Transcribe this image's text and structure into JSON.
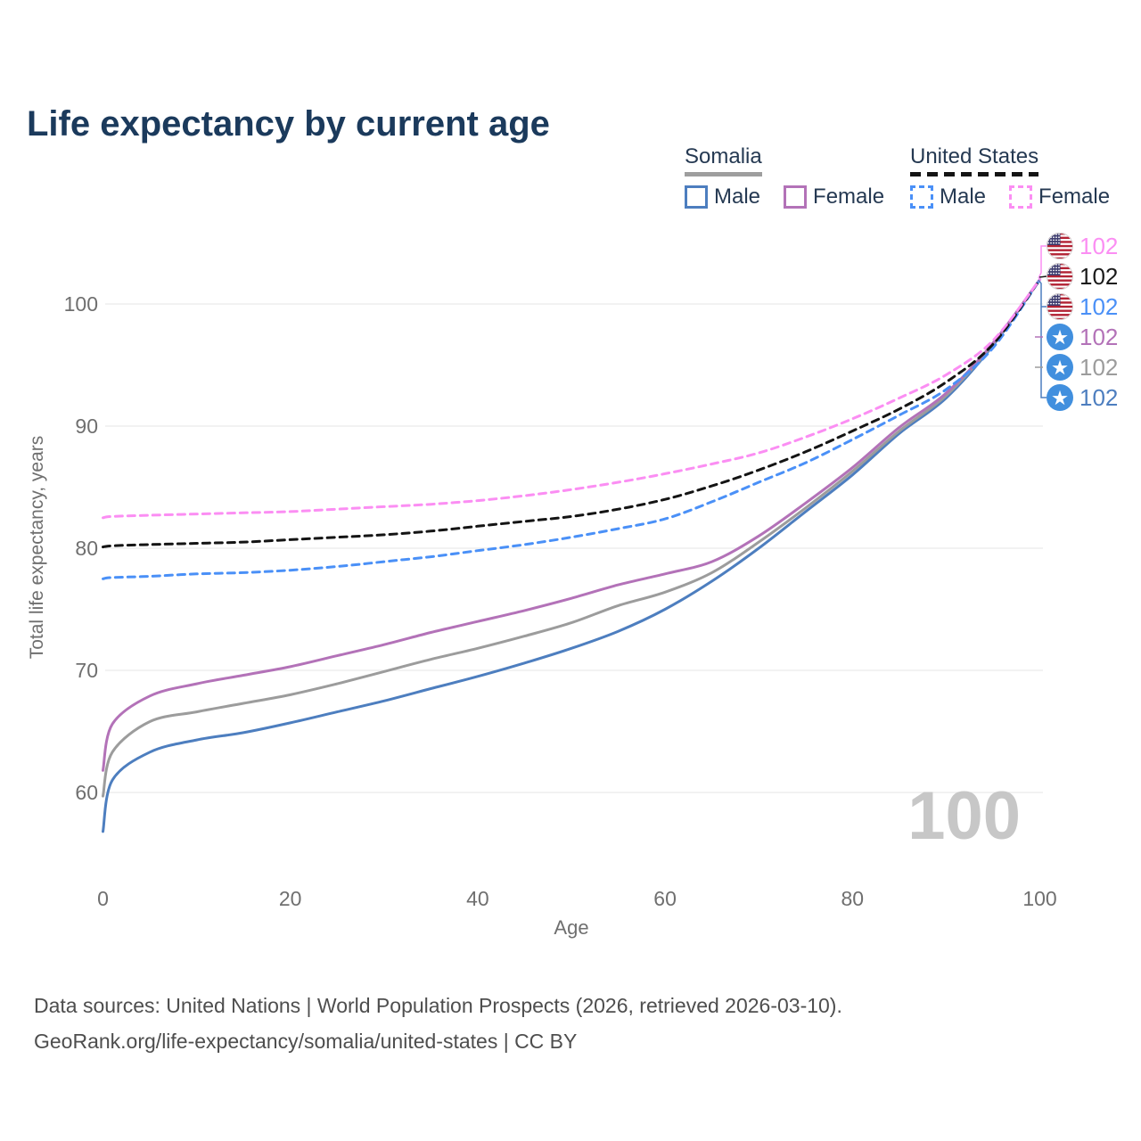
{
  "title": "Life expectancy by current age",
  "watermark_age": "100",
  "colors": {
    "title_text": "#1b3a5c",
    "legend_text": "#253952",
    "axis_text": "#6f6f6f",
    "grid": "#e9e9e9",
    "watermark": "#c7c7c7",
    "footer_text": "#4e4e4e",
    "background": "#ffffff",
    "somalia_male": "#4d7ebf",
    "somalia_female": "#b372b8",
    "somalia_both": "#9c9c9c",
    "us_male": "#4a90f7",
    "us_female": "#fb8ef3",
    "us_both": "#141414",
    "flag_somalia_blue": "#418fde",
    "flag_us_red": "#b22234",
    "flag_us_canton": "#3c3b6e"
  },
  "legend": {
    "groups": [
      {
        "name": "Somalia",
        "dashed": false,
        "underline_color": "#9e9e9e",
        "items": [
          {
            "label": "Male",
            "color": "#4d7ebf"
          },
          {
            "label": "Female",
            "color": "#b372b8"
          }
        ]
      },
      {
        "name": "United States",
        "dashed": true,
        "underline_color": "#141414",
        "items": [
          {
            "label": "Male",
            "color": "#4a90f7"
          },
          {
            "label": "Female",
            "color": "#fb8ef3"
          }
        ]
      }
    ]
  },
  "end_labels": [
    {
      "value": "102",
      "color": "#fb8ef3",
      "flag": "us",
      "series": "United States Female"
    },
    {
      "value": "102",
      "color": "#1a1a1a",
      "flag": "us",
      "series": "United States Both sexes"
    },
    {
      "value": "102",
      "color": "#4a90f7",
      "flag": "us",
      "series": "United States Male"
    },
    {
      "value": "102",
      "color": "#b372b8",
      "flag": "somalia",
      "series": "Somalia Female"
    },
    {
      "value": "102",
      "color": "#9c9c9c",
      "flag": "somalia",
      "series": "Somalia Both sexes"
    },
    {
      "value": "102",
      "color": "#4d7ebf",
      "flag": "somalia",
      "series": "Somalia Male"
    }
  ],
  "footer": {
    "line1": "Data sources: United Nations | World Population Prospects (2026, retrieved 2026-03-10).",
    "line2": "GeoRank.org/life-expectancy/somalia/united-states | CC BY"
  },
  "chart_data": {
    "type": "line",
    "title": "Life expectancy by current age",
    "xlabel": "Age",
    "ylabel": "Total life expectancy, years",
    "xlim": [
      0,
      100
    ],
    "ylim": [
      55.5,
      105
    ],
    "x_ticks": [
      0,
      20,
      40,
      60,
      80,
      100
    ],
    "y_ticks": [
      60,
      70,
      80,
      90,
      100
    ],
    "grid": "horizontal-only",
    "legend_position": "top-right",
    "current_age_indicator": 100,
    "end_value_all_series": 102,
    "x": [
      0,
      1,
      5,
      10,
      15,
      20,
      25,
      30,
      35,
      40,
      45,
      50,
      55,
      60,
      65,
      70,
      75,
      80,
      85,
      90,
      95,
      100
    ],
    "series": [
      {
        "name": "Somalia Male",
        "country": "Somalia",
        "sex": "male",
        "color": "#4d7ebf",
        "dashed": false,
        "values": [
          56.8,
          61.0,
          63.3,
          64.3,
          64.9,
          65.7,
          66.6,
          67.5,
          68.5,
          69.5,
          70.6,
          71.8,
          73.2,
          75.0,
          77.3,
          80.0,
          83.0,
          86.0,
          89.4,
          92.3,
          96.6,
          102
        ]
      },
      {
        "name": "Somalia Both sexes",
        "country": "Somalia",
        "sex": "both",
        "color": "#9c9c9c",
        "dashed": false,
        "values": [
          59.7,
          63.3,
          65.8,
          66.6,
          67.3,
          68.0,
          68.9,
          69.9,
          70.9,
          71.8,
          72.8,
          73.9,
          75.3,
          76.4,
          78.0,
          80.5,
          83.3,
          86.3,
          89.6,
          92.5,
          96.7,
          102
        ]
      },
      {
        "name": "Somalia Female",
        "country": "Somalia",
        "sex": "female",
        "color": "#b372b8",
        "dashed": false,
        "values": [
          61.8,
          65.6,
          67.9,
          68.9,
          69.6,
          70.3,
          71.2,
          72.1,
          73.1,
          74.0,
          74.9,
          75.9,
          77.0,
          77.9,
          78.9,
          81.0,
          83.7,
          86.6,
          89.9,
          92.7,
          96.8,
          102
        ]
      },
      {
        "name": "United States Male",
        "country": "United States",
        "sex": "male",
        "color": "#4a90f7",
        "dashed": true,
        "values": [
          77.5,
          77.6,
          77.7,
          77.9,
          78.0,
          78.2,
          78.5,
          78.9,
          79.3,
          79.8,
          80.3,
          80.9,
          81.6,
          82.4,
          83.8,
          85.4,
          87.0,
          88.9,
          90.9,
          93.0,
          96.4,
          102
        ]
      },
      {
        "name": "United States Both sexes",
        "country": "United States",
        "sex": "both",
        "color": "#141414",
        "dashed": true,
        "values": [
          80.1,
          80.2,
          80.3,
          80.4,
          80.5,
          80.7,
          80.9,
          81.1,
          81.4,
          81.8,
          82.2,
          82.6,
          83.2,
          84.0,
          85.1,
          86.4,
          87.9,
          89.6,
          91.4,
          93.6,
          96.7,
          102
        ]
      },
      {
        "name": "United States Female",
        "country": "United States",
        "sex": "female",
        "color": "#fb8ef3",
        "dashed": true,
        "values": [
          82.5,
          82.6,
          82.7,
          82.8,
          82.9,
          83.0,
          83.2,
          83.4,
          83.6,
          83.9,
          84.3,
          84.8,
          85.4,
          86.1,
          86.9,
          87.8,
          89.1,
          90.6,
          92.3,
          94.2,
          97.0,
          102
        ]
      }
    ]
  }
}
